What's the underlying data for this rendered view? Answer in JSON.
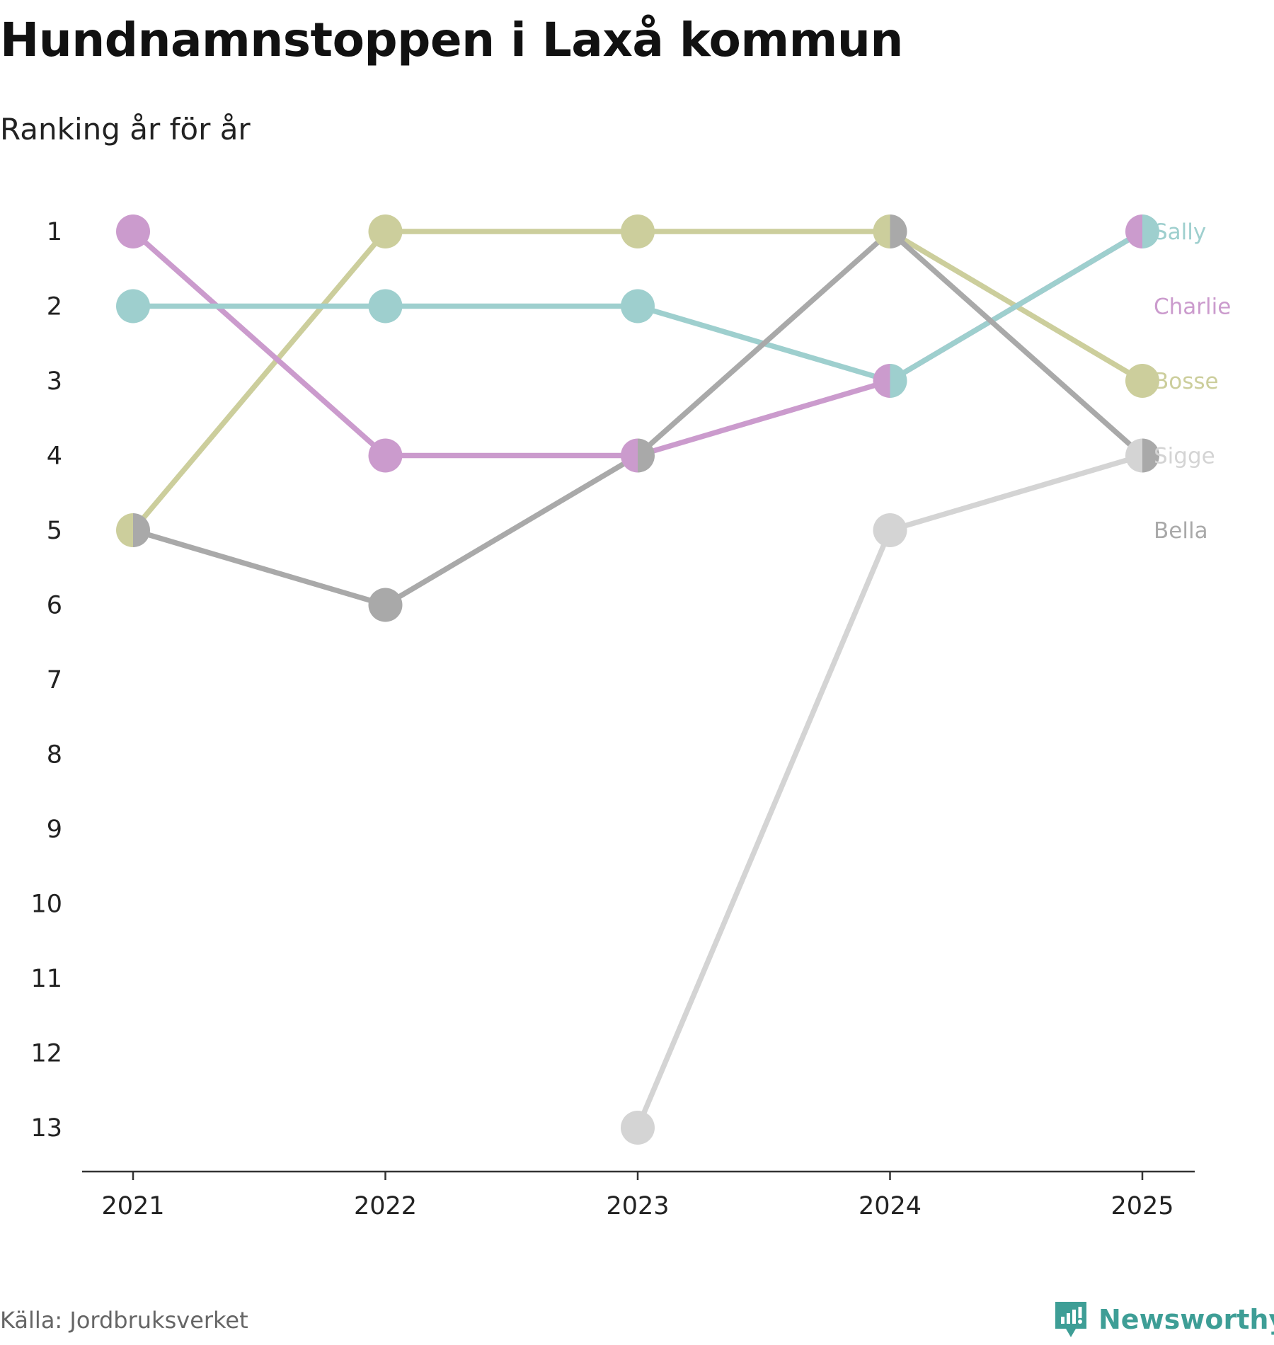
{
  "header": {
    "title": "Hundnamnstoppen i Laxå kommun",
    "subtitle": "Ranking år för år"
  },
  "footer": {
    "source": "Källa: Jordbruksverket",
    "brand": "Newsworthy"
  },
  "colors": {
    "Sally": "#9ecfce",
    "Charlie": "#cb9bcd",
    "Bosse": "#ccce9c",
    "Sigge": "#d4d4d4",
    "Bella": "#a9a9a9"
  },
  "chart_data": {
    "type": "line",
    "subtype": "bump",
    "title": "Hundnamnstoppen i Laxå kommun",
    "subtitle": "Ranking år för år",
    "xlabel": "",
    "ylabel": "",
    "x": [
      "2021",
      "2022",
      "2023",
      "2024",
      "2025"
    ],
    "y_ticks": [
      "1",
      "2",
      "3",
      "4",
      "5",
      "6",
      "7",
      "8",
      "9",
      "10",
      "11",
      "12",
      "13"
    ],
    "ylim": [
      1,
      13
    ],
    "y_inverted": true,
    "grid": false,
    "legend": "direct labels at right end of lines",
    "series": [
      {
        "name": "Sally",
        "values": [
          2,
          2,
          2,
          3,
          1
        ]
      },
      {
        "name": "Charlie",
        "values": [
          1,
          4,
          4,
          3,
          1
        ]
      },
      {
        "name": "Bosse",
        "values": [
          5,
          1,
          1,
          1,
          3
        ]
      },
      {
        "name": "Sigge",
        "values": [
          null,
          null,
          13,
          5,
          4
        ]
      },
      {
        "name": "Bella",
        "values": [
          5,
          6,
          4,
          1,
          4
        ]
      }
    ],
    "draw_order": [
      "Sigge",
      "Bosse",
      "Charlie",
      "Sally",
      "Bella"
    ]
  }
}
